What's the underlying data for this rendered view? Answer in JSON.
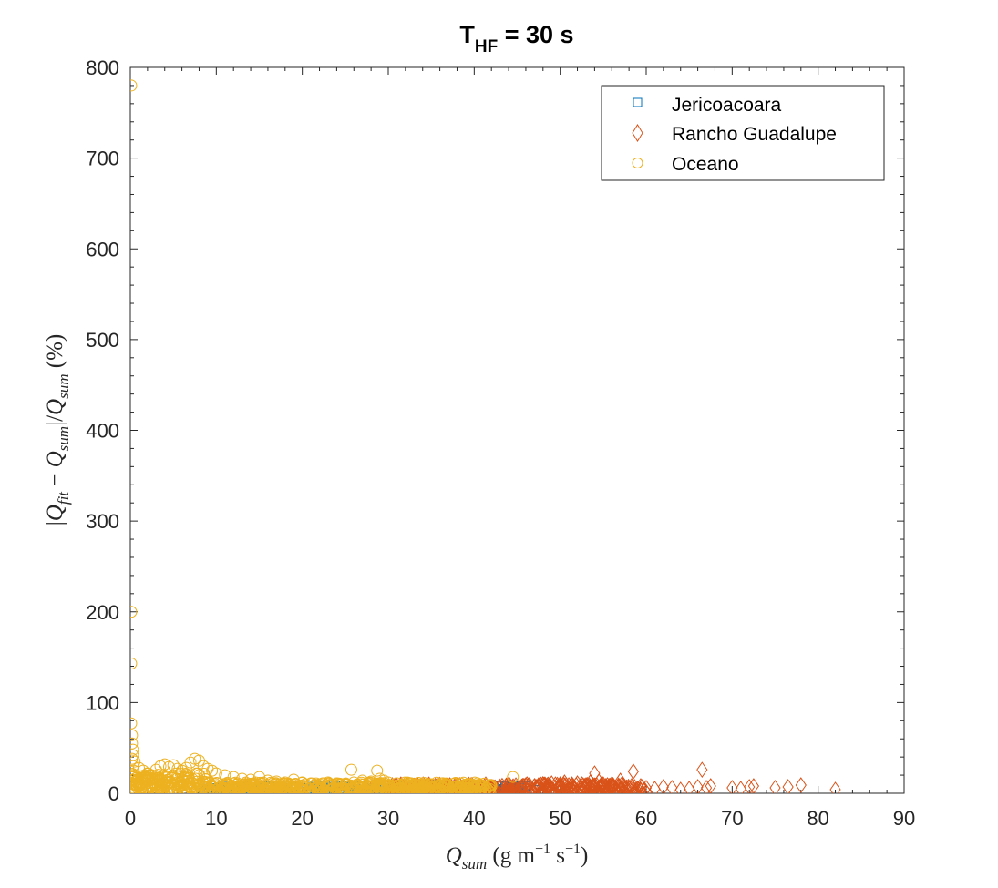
{
  "chart_data": {
    "type": "scatter",
    "title": "THF = 30 s",
    "title_main": "T",
    "title_sub": "HF",
    "title_rest": " = 30 s",
    "xlabel": "Q_sum (g m^-1 s^-1)",
    "ylabel": "|Q_fit - Q_sum|/Q_sum (%)",
    "xlim": [
      0,
      90
    ],
    "ylim": [
      0,
      800
    ],
    "xticks": [
      0,
      10,
      20,
      30,
      40,
      50,
      60,
      70,
      80,
      90
    ],
    "yticks": [
      0,
      100,
      200,
      300,
      400,
      500,
      600,
      700,
      800
    ],
    "legend_position": "top-right",
    "grid": false,
    "series": [
      {
        "name": "Jericoacoara",
        "marker": "square",
        "color": "#0072BD",
        "points": [
          [
            10,
            6
          ],
          [
            12,
            5
          ],
          [
            15,
            4
          ],
          [
            18,
            5
          ],
          [
            20,
            6
          ],
          [
            22,
            4
          ],
          [
            25,
            5
          ],
          [
            28,
            4
          ],
          [
            30,
            6
          ],
          [
            32,
            5
          ],
          [
            33,
            7
          ],
          [
            34,
            8
          ],
          [
            35,
            10
          ],
          [
            36,
            9
          ],
          [
            37,
            8
          ],
          [
            38,
            7
          ],
          [
            39,
            8
          ],
          [
            40,
            9
          ],
          [
            41,
            6
          ],
          [
            42,
            5
          ],
          [
            42.5,
            4
          ],
          [
            43,
            5
          ],
          [
            44,
            6
          ],
          [
            45,
            4
          ],
          [
            46,
            3
          ],
          [
            47,
            4
          ],
          [
            48,
            3
          ]
        ]
      },
      {
        "name": "Rancho Guadalupe",
        "marker": "diamond",
        "color": "#D95319",
        "points": [
          [
            20,
            3
          ],
          [
            24,
            2
          ],
          [
            28,
            4
          ],
          [
            32,
            3
          ],
          [
            35,
            4
          ],
          [
            38,
            5
          ],
          [
            40,
            6
          ],
          [
            41,
            5
          ],
          [
            42,
            7
          ],
          [
            43,
            6
          ],
          [
            44,
            8
          ],
          [
            45,
            7
          ],
          [
            46,
            9
          ],
          [
            47,
            8
          ],
          [
            48,
            10
          ],
          [
            48.5,
            9
          ],
          [
            49,
            11
          ],
          [
            50,
            10
          ],
          [
            50.5,
            12
          ],
          [
            51,
            9
          ],
          [
            51.5,
            8
          ],
          [
            52,
            11
          ],
          [
            52.5,
            10
          ],
          [
            53,
            9
          ],
          [
            53.5,
            12
          ],
          [
            54,
            22
          ],
          [
            54.5,
            13
          ],
          [
            55,
            10
          ],
          [
            55.5,
            9
          ],
          [
            56,
            8
          ],
          [
            57,
            14
          ],
          [
            57.5,
            7
          ],
          [
            58,
            6
          ],
          [
            58.5,
            24
          ],
          [
            59,
            5
          ],
          [
            59.5,
            7
          ],
          [
            60,
            6
          ],
          [
            61,
            5
          ],
          [
            62,
            7
          ],
          [
            63,
            6
          ],
          [
            64,
            4
          ],
          [
            65,
            5
          ],
          [
            66,
            7
          ],
          [
            66.5,
            26
          ],
          [
            67,
            6
          ],
          [
            67.5,
            8
          ],
          [
            70,
            6
          ],
          [
            71,
            5
          ],
          [
            72,
            7
          ],
          [
            72.5,
            8
          ],
          [
            75,
            6
          ],
          [
            76.5,
            7
          ],
          [
            78,
            9
          ],
          [
            82,
            4
          ]
        ]
      },
      {
        "name": "Oceano",
        "marker": "circle",
        "color": "#EDB120",
        "points": [
          [
            0.1,
            780
          ],
          [
            0.1,
            200
          ],
          [
            0.1,
            143
          ],
          [
            0.1,
            77
          ],
          [
            0.2,
            64
          ],
          [
            0.2,
            55
          ],
          [
            0.3,
            48
          ],
          [
            0.3,
            42
          ],
          [
            0.2,
            38
          ],
          [
            0.5,
            35
          ],
          [
            0.3,
            30
          ],
          [
            0.4,
            25
          ],
          [
            0.2,
            20
          ],
          [
            0.3,
            15
          ],
          [
            0.4,
            10
          ],
          [
            0.2,
            5
          ],
          [
            0.5,
            2
          ],
          [
            1,
            28
          ],
          [
            1.5,
            25
          ],
          [
            2,
            22
          ],
          [
            2.5,
            20
          ],
          [
            3,
            26
          ],
          [
            3.5,
            30
          ],
          [
            4,
            32
          ],
          [
            4.5,
            29
          ],
          [
            5,
            31
          ],
          [
            5.5,
            27
          ],
          [
            6,
            25
          ],
          [
            6.5,
            28
          ],
          [
            7,
            34
          ],
          [
            7.5,
            38
          ],
          [
            8,
            36
          ],
          [
            8.5,
            30
          ],
          [
            9,
            27
          ],
          [
            9.5,
            25
          ],
          [
            10,
            22
          ],
          [
            11,
            20
          ],
          [
            12,
            18
          ],
          [
            13,
            16
          ],
          [
            14,
            15
          ],
          [
            15,
            18
          ],
          [
            16,
            14
          ],
          [
            17,
            13
          ],
          [
            18,
            12
          ],
          [
            19,
            15
          ],
          [
            20,
            12
          ],
          [
            21,
            11
          ],
          [
            22,
            10
          ],
          [
            23,
            12
          ],
          [
            24,
            11
          ],
          [
            25,
            10
          ],
          [
            25.7,
            26
          ],
          [
            26,
            12
          ],
          [
            27,
            14
          ],
          [
            28,
            13
          ],
          [
            28.7,
            25
          ],
          [
            29,
            16
          ],
          [
            29.5,
            14
          ],
          [
            30,
            12
          ],
          [
            31,
            11
          ],
          [
            32,
            10
          ],
          [
            33,
            9
          ],
          [
            34,
            8
          ],
          [
            35,
            10
          ],
          [
            36,
            9
          ],
          [
            37,
            8
          ],
          [
            38,
            7
          ],
          [
            39,
            6
          ],
          [
            40,
            5
          ],
          [
            44.5,
            18
          ],
          [
            1,
            8
          ],
          [
            2,
            6
          ],
          [
            3,
            9
          ],
          [
            4,
            7
          ],
          [
            5,
            5
          ],
          [
            6,
            8
          ],
          [
            7,
            6
          ],
          [
            8,
            9
          ],
          [
            9,
            7
          ],
          [
            10,
            8
          ],
          [
            11,
            6
          ],
          [
            12,
            5
          ],
          [
            13,
            7
          ],
          [
            14,
            6
          ],
          [
            15,
            4
          ],
          [
            16,
            6
          ],
          [
            17,
            5
          ],
          [
            18,
            7
          ],
          [
            19,
            4
          ],
          [
            20,
            6
          ],
          [
            22,
            5
          ],
          [
            24,
            4
          ],
          [
            26,
            5
          ],
          [
            27,
            6
          ],
          [
            29,
            7
          ],
          [
            31,
            5
          ],
          [
            33,
            4
          ],
          [
            35,
            3
          ],
          [
            37,
            4
          ],
          [
            39,
            3
          ],
          [
            41,
            2
          ]
        ]
      }
    ]
  }
}
